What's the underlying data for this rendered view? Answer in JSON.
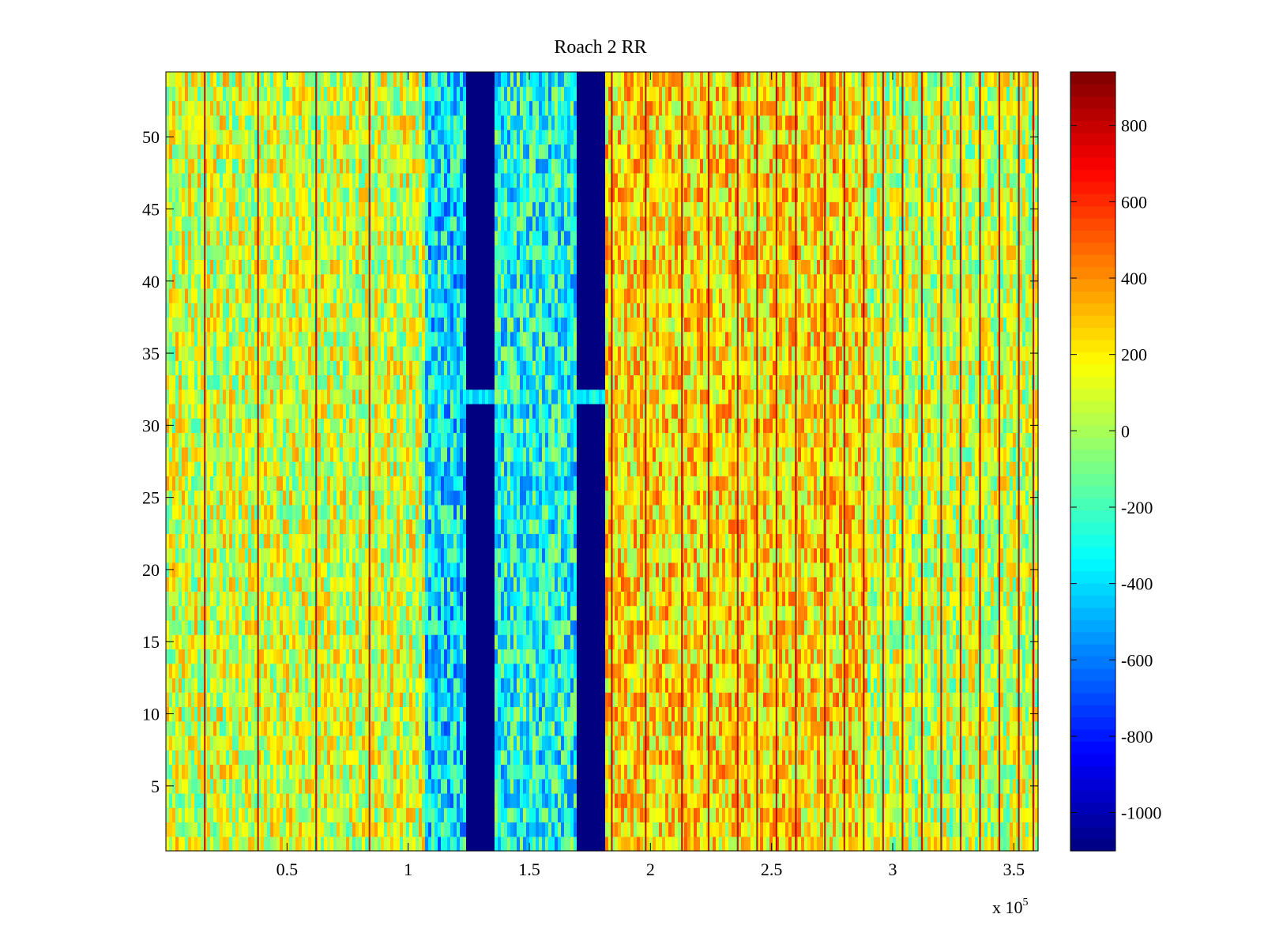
{
  "chart_data": {
    "type": "heatmap",
    "title": "Roach 2 RR",
    "xlabel": "",
    "ylabel": "",
    "x_multiplier_label": "x 10",
    "x_multiplier_exponent": "5",
    "xlim": [
      0,
      3.6
    ],
    "ylim": [
      0.5,
      54.5
    ],
    "x_ticks": [
      0.5,
      1,
      1.5,
      2,
      2.5,
      3,
      3.5
    ],
    "x_tick_labels": [
      "0.5",
      "1",
      "1.5",
      "2",
      "2.5",
      "3",
      "3.5"
    ],
    "y_ticks": [
      5,
      10,
      15,
      20,
      25,
      30,
      35,
      40,
      45,
      50
    ],
    "y_tick_labels": [
      "5",
      "10",
      "15",
      "20",
      "25",
      "30",
      "35",
      "40",
      "45",
      "50"
    ],
    "rows": 54,
    "colorbar": {
      "clim": [
        -1100,
        940
      ],
      "ticks": [
        800,
        600,
        400,
        200,
        0,
        -200,
        -400,
        -600,
        -800,
        -1000
      ],
      "tick_labels": [
        "800",
        "600",
        "400",
        "200",
        "0",
        "-200",
        "-400",
        "-600",
        "-800",
        "-1000"
      ],
      "colormap": "jet"
    },
    "bands": [
      {
        "x_start": 0.0,
        "x_end": 1.07,
        "value": 80
      },
      {
        "x_start": 1.07,
        "x_end": 1.24,
        "value": -380
      },
      {
        "x_start": 1.24,
        "x_end": 1.36,
        "value": -1100
      },
      {
        "x_start": 1.36,
        "x_end": 1.7,
        "value": -300
      },
      {
        "x_start": 1.7,
        "x_end": 1.81,
        "value": -1100
      },
      {
        "x_start": 1.81,
        "x_end": 2.9,
        "value": 230
      },
      {
        "x_start": 2.9,
        "x_end": 3.6,
        "value": 60
      }
    ],
    "row_anomaly": {
      "row": 32,
      "value": -350
    },
    "narrow_spikes_x": [
      0.16,
      0.38,
      0.62,
      0.84,
      1.84,
      1.98,
      2.13,
      2.24,
      2.36,
      2.44,
      2.52,
      2.6,
      2.72,
      2.8,
      2.88,
      2.96,
      3.04,
      3.12,
      3.2,
      3.28,
      3.36,
      3.44,
      3.52,
      3.58
    ],
    "spike_value": 850
  }
}
